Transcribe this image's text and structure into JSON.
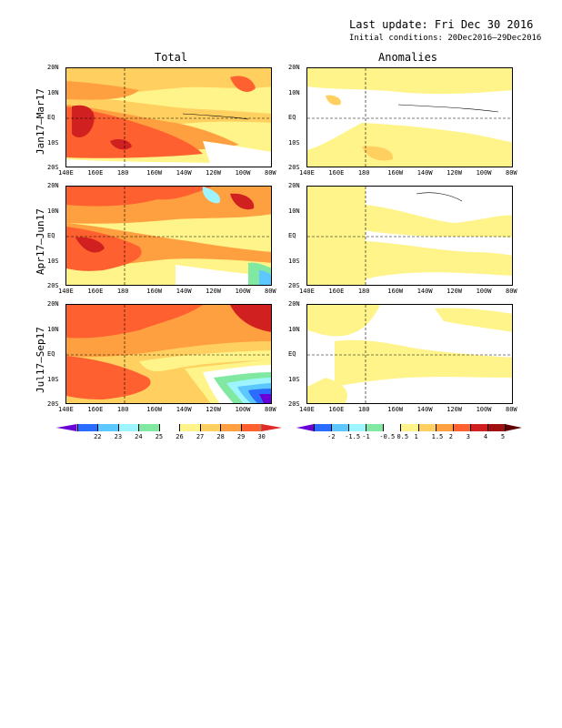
{
  "header": {
    "last_update": "Last update: Fri Dec 30 2016",
    "initial_conditions": "Initial conditions: 20Dec2016–29Dec2016"
  },
  "columns": {
    "total": "Total",
    "anomalies": "Anomalies"
  },
  "rows": [
    {
      "label": "Jan17–Mar17"
    },
    {
      "label": "Apr17–Jun17"
    },
    {
      "label": "Jul17–Sep17"
    }
  ],
  "lat_ticks": [
    "20N",
    "10N",
    "EQ",
    "10S",
    "20S"
  ],
  "lon_ticks": [
    "140E",
    "160E",
    "180",
    "160W",
    "140W",
    "120W",
    "100W",
    "80W"
  ],
  "total_colorbar": {
    "labels": [
      "22",
      "23",
      "24",
      "25",
      "26",
      "27",
      "28",
      "29",
      "30"
    ],
    "colors": [
      "#6a00d8",
      "#2a6cff",
      "#5cc8ff",
      "#9ff5ff",
      "#80e8a0",
      "#ffffff",
      "#fff48a",
      "#ffd060",
      "#ffa040",
      "#ff6030",
      "#e02a2a"
    ]
  },
  "anomaly_colorbar": {
    "labels": [
      "-2",
      "-1.5",
      "-1",
      "-0.5",
      "0.5",
      "1",
      "1.5",
      "2",
      "3",
      "4",
      "5"
    ],
    "colors": [
      "#6a00d8",
      "#2a6cff",
      "#5cc8ff",
      "#9ff5ff",
      "#80e8a0",
      "#ffffff",
      "#fff48a",
      "#ffd060",
      "#ffa040",
      "#ff6030",
      "#d02020",
      "#a01010",
      "#600000"
    ]
  }
}
